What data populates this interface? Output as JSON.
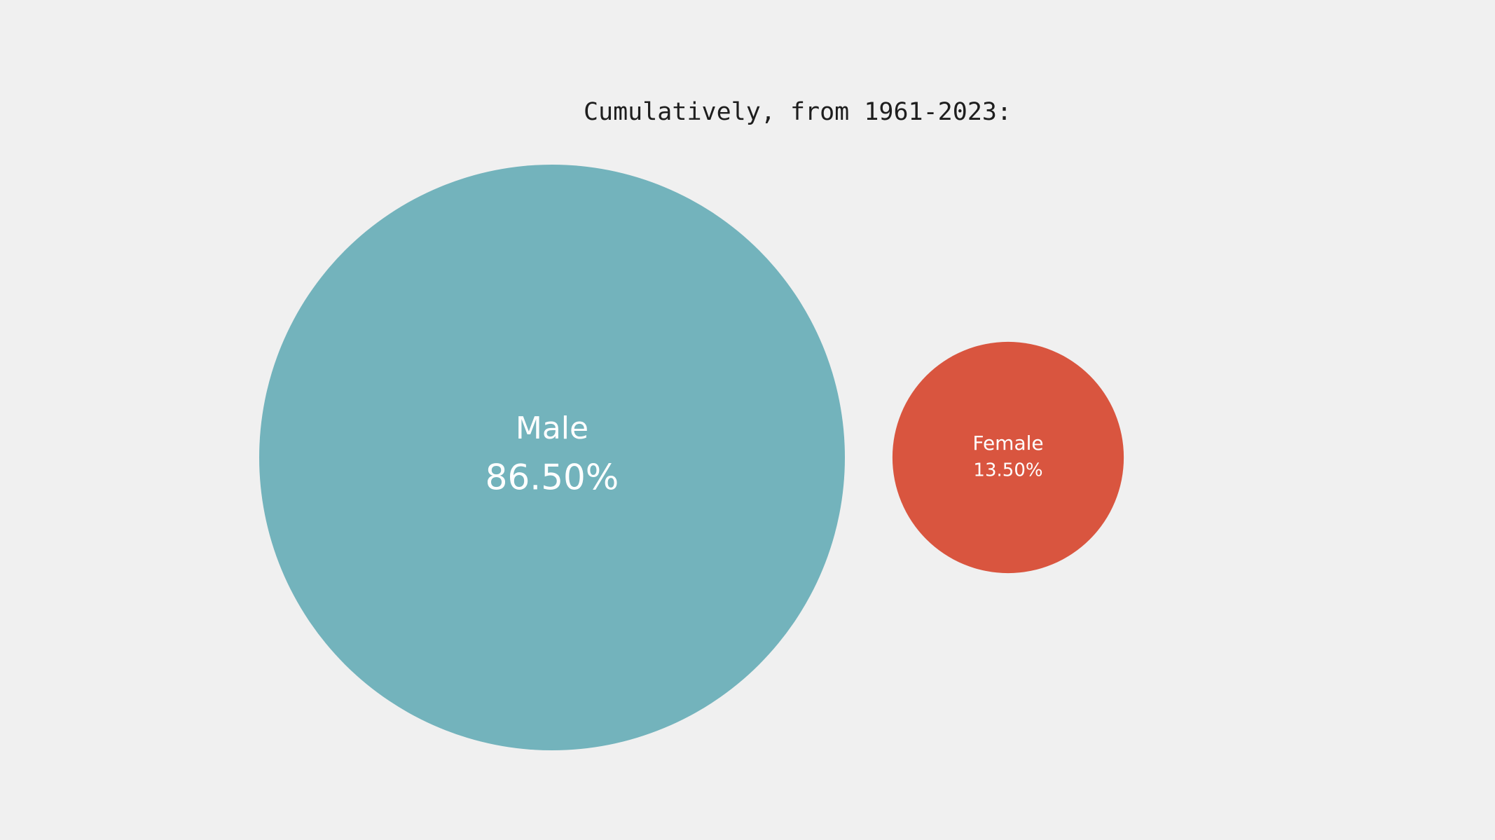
{
  "chart_data": {
    "type": "bubble",
    "title": "Cumulatively, from 1961-2023:",
    "grid": false,
    "legend": "none",
    "series": [
      {
        "label": "Male",
        "value": 86.5,
        "value_label": "86.50%",
        "color": "#73b3bc"
      },
      {
        "label": "Female",
        "value": 13.5,
        "value_label": "13.50%",
        "color": "#d9553f"
      }
    ]
  },
  "colors": {
    "background": "#f0f0f0",
    "title": "#1e1e1e",
    "label": "#ffffff"
  }
}
